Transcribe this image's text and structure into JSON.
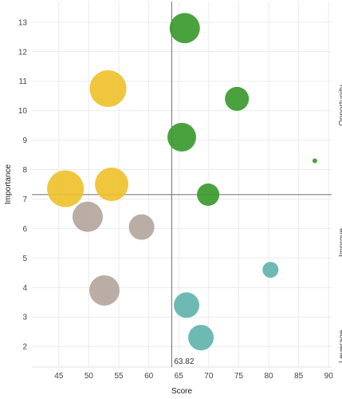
{
  "chart_data": {
    "type": "scatter",
    "variant": "bubble",
    "xlabel": "Score",
    "ylabel": "Importance",
    "xlim": [
      40.5,
      90.5
    ],
    "ylim": [
      1.3,
      13.7
    ],
    "x_ticks": [
      45,
      50,
      55,
      60,
      65,
      70,
      75,
      80,
      85,
      90
    ],
    "y_ticks": [
      2,
      3,
      4,
      5,
      6,
      7,
      8,
      9,
      10,
      11,
      12,
      13
    ],
    "grid": true,
    "reference_lines": {
      "x": 63.82,
      "y": 7.15,
      "x_label": "63.82"
    },
    "quadrant_labels": [
      "Opportunity",
      "Improve",
      "Leverage"
    ],
    "colors": {
      "green": "#3a9a2e",
      "yellow": "#eec12e",
      "taupe": "#b3a69d",
      "teal": "#62b4ad",
      "refline": "#6b6b6b",
      "grid": "#ebebeb"
    },
    "points": [
      {
        "x": 66.0,
        "y": 12.8,
        "size": 19,
        "color": "green"
      },
      {
        "x": 74.7,
        "y": 10.4,
        "size": 15,
        "color": "green"
      },
      {
        "x": 65.5,
        "y": 9.1,
        "size": 18,
        "color": "green"
      },
      {
        "x": 87.7,
        "y": 8.3,
        "size": 3,
        "color": "green"
      },
      {
        "x": 69.9,
        "y": 7.15,
        "size": 14,
        "color": "green"
      },
      {
        "x": 53.2,
        "y": 10.75,
        "size": 23,
        "color": "yellow"
      },
      {
        "x": 46.1,
        "y": 7.35,
        "size": 23,
        "color": "yellow"
      },
      {
        "x": 53.8,
        "y": 7.5,
        "size": 21,
        "color": "yellow"
      },
      {
        "x": 49.8,
        "y": 6.4,
        "size": 19,
        "color": "taupe"
      },
      {
        "x": 58.8,
        "y": 6.05,
        "size": 16,
        "color": "taupe"
      },
      {
        "x": 52.6,
        "y": 3.9,
        "size": 19,
        "color": "taupe"
      },
      {
        "x": 80.3,
        "y": 4.6,
        "size": 10,
        "color": "teal"
      },
      {
        "x": 66.3,
        "y": 3.4,
        "size": 16,
        "color": "teal"
      },
      {
        "x": 68.7,
        "y": 2.3,
        "size": 16,
        "color": "teal"
      }
    ]
  }
}
